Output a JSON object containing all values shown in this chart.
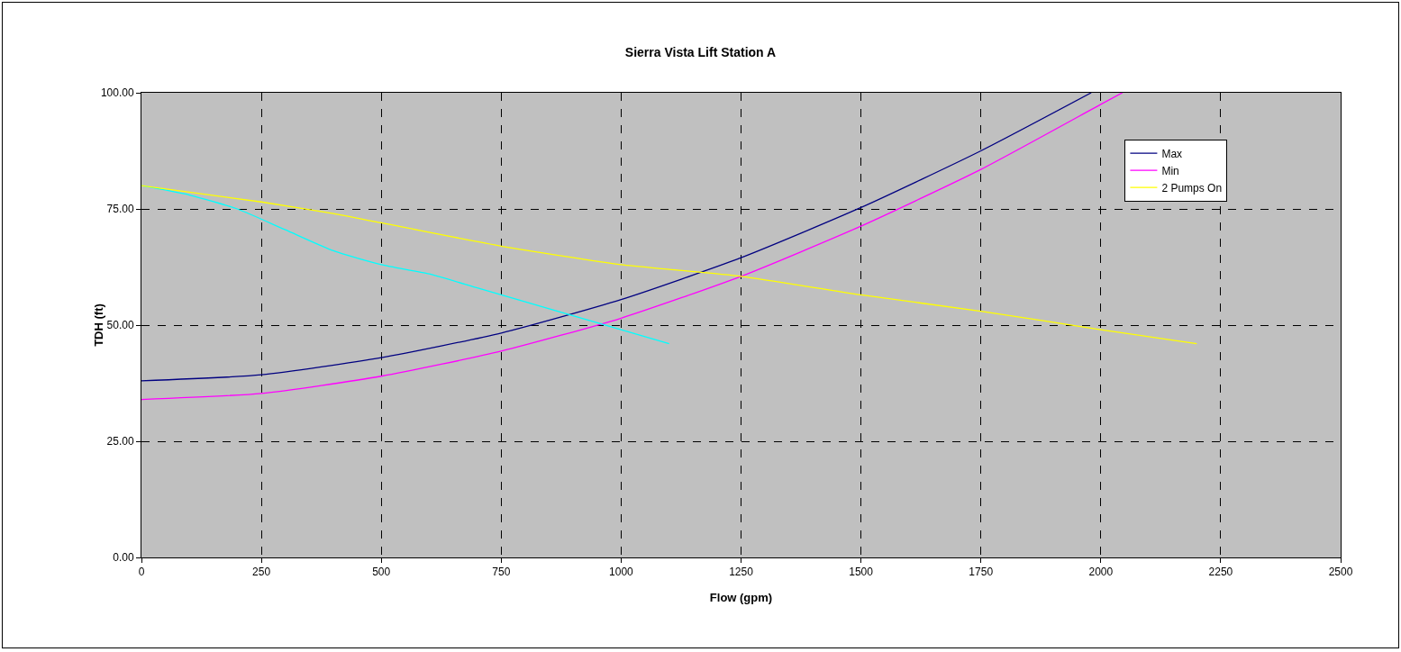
{
  "chart_data": {
    "type": "line",
    "title": "Sierra Vista Lift Station A",
    "xlabel": "Flow (gpm)",
    "ylabel": "TDH (ft)",
    "xlim": [
      0,
      2500
    ],
    "xticks": [
      0,
      250,
      500,
      750,
      1000,
      1250,
      1500,
      1750,
      2000,
      2250,
      2500
    ],
    "ylim": [
      0,
      100
    ],
    "yticks": [
      {
        "value": 0,
        "label": "0.00"
      },
      {
        "value": 25,
        "label": "25.00"
      },
      {
        "value": 50,
        "label": "50.00"
      },
      {
        "value": 75,
        "label": "75.00"
      },
      {
        "value": 100,
        "label": "100.00"
      }
    ],
    "grid": true,
    "legend": "top right",
    "marker": "none",
    "line_style": "solid",
    "series": [
      {
        "name": "Max",
        "color": "#000080",
        "x": [
          0,
          250,
          500,
          750,
          1000,
          1250,
          1500,
          1750,
          1980
        ],
        "values": [
          38,
          39.3,
          43,
          48.3,
          55.5,
          64.5,
          75.3,
          87.5,
          100
        ]
      },
      {
        "name": "Min",
        "color": "#ff00ff",
        "x": [
          0,
          250,
          500,
          750,
          1000,
          1250,
          1500,
          1750,
          2000,
          2045
        ],
        "values": [
          34,
          35.3,
          39,
          44.4,
          51.5,
          60.5,
          71.3,
          83.5,
          97.5,
          100
        ]
      },
      {
        "color": "#00ffff",
        "x": [
          0,
          100,
          200,
          300,
          400,
          500,
          600,
          700,
          800,
          900,
          1000,
          1100
        ],
        "values": [
          80,
          78,
          75,
          70.5,
          66,
          63,
          61,
          58,
          55,
          52,
          49,
          46
        ]
      },
      {
        "name": "2 Pumps On",
        "color": "#ffff00",
        "x": [
          0,
          250,
          400,
          500,
          750,
          1000,
          1100,
          1250,
          1500,
          1750,
          2000,
          2200
        ],
        "values": [
          80,
          76.5,
          74,
          72,
          67,
          63,
          62,
          60.5,
          56.5,
          53,
          49,
          46
        ]
      }
    ]
  }
}
